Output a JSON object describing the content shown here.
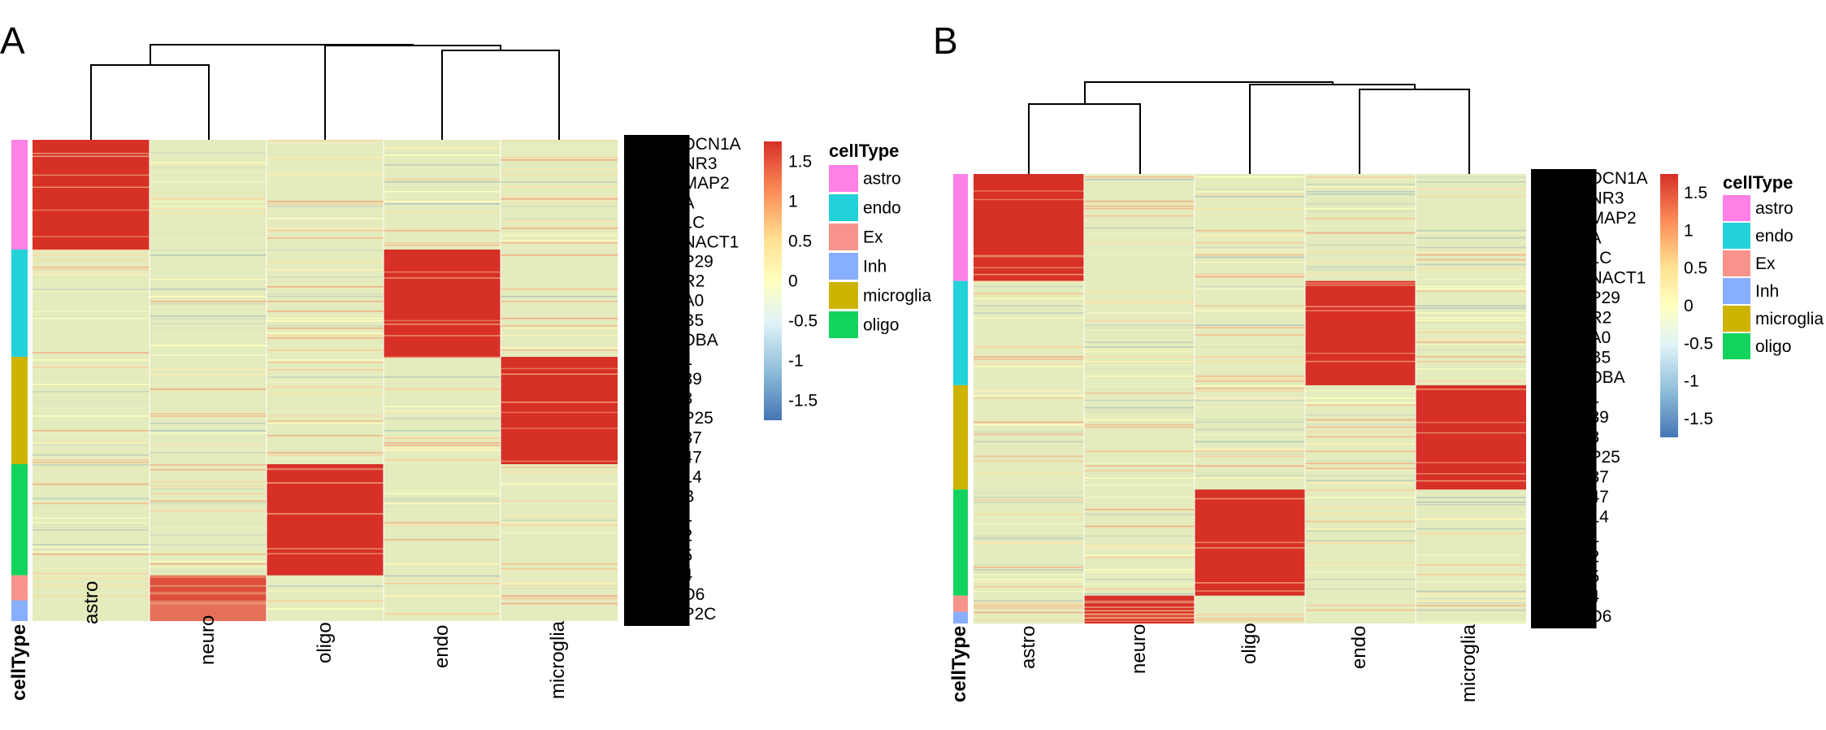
{
  "panels": [
    {
      "letter": "A",
      "columns": [
        "astro",
        "neuro",
        "oligo",
        "endo",
        "microglia"
      ],
      "annotation_title": "cellType",
      "cell_type_legend_title": "cellType",
      "cell_types": [
        {
          "name": "astro",
          "color": "#FF80E6",
          "fraction": 0.228
        },
        {
          "name": "endo",
          "color": "#22D2D8",
          "fraction": 0.223
        },
        {
          "name": "microglia",
          "color": "#CCB400",
          "fraction": 0.223
        },
        {
          "name": "oligo",
          "color": "#13D35F",
          "fraction": 0.231
        },
        {
          "name": "Ex",
          "color": "#F8938B",
          "fraction": 0.052
        },
        {
          "name": "Inh",
          "color": "#88AEFF",
          "fraction": 0.043
        }
      ],
      "visible_gene_fragments": [
        "DCN1A",
        "NR3",
        "MAP2",
        "A",
        "1C",
        "NACT1",
        "P29",
        "R2",
        "A0",
        "B5",
        "DBA",
        "1",
        "39",
        "3",
        "P25",
        "37",
        "47",
        "14",
        "B",
        "1",
        "2",
        "5",
        "4",
        "D6",
        "P2C"
      ]
    },
    {
      "letter": "B",
      "columns": [
        "astro",
        "neuro",
        "oligo",
        "endo",
        "microglia"
      ],
      "annotation_title": "cellType",
      "cell_type_legend_title": "cellType",
      "cell_types": [
        {
          "name": "astro",
          "color": "#FF80E6",
          "fraction": 0.238
        },
        {
          "name": "endo",
          "color": "#22D2D8",
          "fraction": 0.232
        },
        {
          "name": "microglia",
          "color": "#CCB400",
          "fraction": 0.232
        },
        {
          "name": "oligo",
          "color": "#13D35F",
          "fraction": 0.236
        },
        {
          "name": "Ex",
          "color": "#F8938B",
          "fraction": 0.036
        },
        {
          "name": "Inh",
          "color": "#88AEFF",
          "fraction": 0.026
        }
      ],
      "visible_gene_fragments": [
        "DCN1A",
        "NR3",
        "MAP2",
        "A",
        "1C",
        "NACT1",
        "P29",
        "R2",
        "A0",
        "B5",
        "DBA",
        "1",
        "39",
        "3",
        "P25",
        "37",
        "47",
        "14",
        "1",
        "2",
        "5",
        "4",
        "D6"
      ]
    }
  ],
  "legend_items": [
    {
      "name": "astro",
      "color": "#FF80E6"
    },
    {
      "name": "endo",
      "color": "#22D2D8"
    },
    {
      "name": "Ex",
      "color": "#F8938B"
    },
    {
      "name": "Inh",
      "color": "#88AEFF"
    },
    {
      "name": "microglia",
      "color": "#CCB400"
    },
    {
      "name": "oligo",
      "color": "#13D35F"
    }
  ],
  "color_scale": {
    "ticks": [
      "1.5",
      "1",
      "0.5",
      "0",
      "-0.5",
      "-1",
      "-1.5"
    ],
    "tick_values": [
      1.5,
      1,
      0.5,
      0,
      -0.5,
      -1,
      -1.5
    ],
    "range": [
      -1.75,
      1.75
    ],
    "colors": {
      "low": "#4575B4",
      "mid": "#FFFFBF",
      "high": "#D73027"
    }
  },
  "chart_data": [
    {
      "type": "heatmap",
      "panel": "A",
      "columns": [
        "astro",
        "neuro",
        "oligo",
        "endo",
        "microglia"
      ],
      "row_groups": [
        "astro",
        "endo",
        "microglia",
        "oligo",
        "Ex",
        "Inh"
      ],
      "high_blocks": [
        {
          "row_group": "astro",
          "column": "astro",
          "value": 1.75
        },
        {
          "row_group": "endo",
          "column": "endo",
          "value": 1.75
        },
        {
          "row_group": "microglia",
          "column": "microglia",
          "value": 1.75
        },
        {
          "row_group": "oligo",
          "column": "oligo",
          "value": 1.75
        },
        {
          "row_group": "Ex",
          "column": "neuro",
          "value": 1.5
        },
        {
          "row_group": "Inh",
          "column": "neuro",
          "value": 1.2
        }
      ],
      "background_value": -0.25,
      "dendrogram": "((astro,(neuro? no)))",
      "column_dendrogram_order": [
        "astro",
        "neuro",
        "oligo",
        "endo",
        "microglia"
      ],
      "legend_placement": "right"
    },
    {
      "type": "heatmap",
      "panel": "B",
      "columns": [
        "astro",
        "neuro",
        "oligo",
        "endo",
        "microglia"
      ],
      "row_groups": [
        "astro",
        "endo",
        "microglia",
        "oligo",
        "Ex",
        "Inh"
      ],
      "high_blocks": [
        {
          "row_group": "astro",
          "column": "astro",
          "value": 1.75
        },
        {
          "row_group": "endo",
          "column": "endo",
          "value": 1.75
        },
        {
          "row_group": "microglia",
          "column": "microglia",
          "value": 1.75
        },
        {
          "row_group": "oligo",
          "column": "oligo",
          "value": 1.75
        },
        {
          "row_group": "Ex",
          "column": "neuro",
          "value": 1.75
        },
        {
          "row_group": "Inh",
          "column": "neuro",
          "value": 1.75
        }
      ],
      "background_value": -0.25,
      "column_dendrogram_order": [
        "astro",
        "neuro",
        "oligo",
        "endo",
        "microglia"
      ],
      "legend_placement": "right"
    }
  ]
}
